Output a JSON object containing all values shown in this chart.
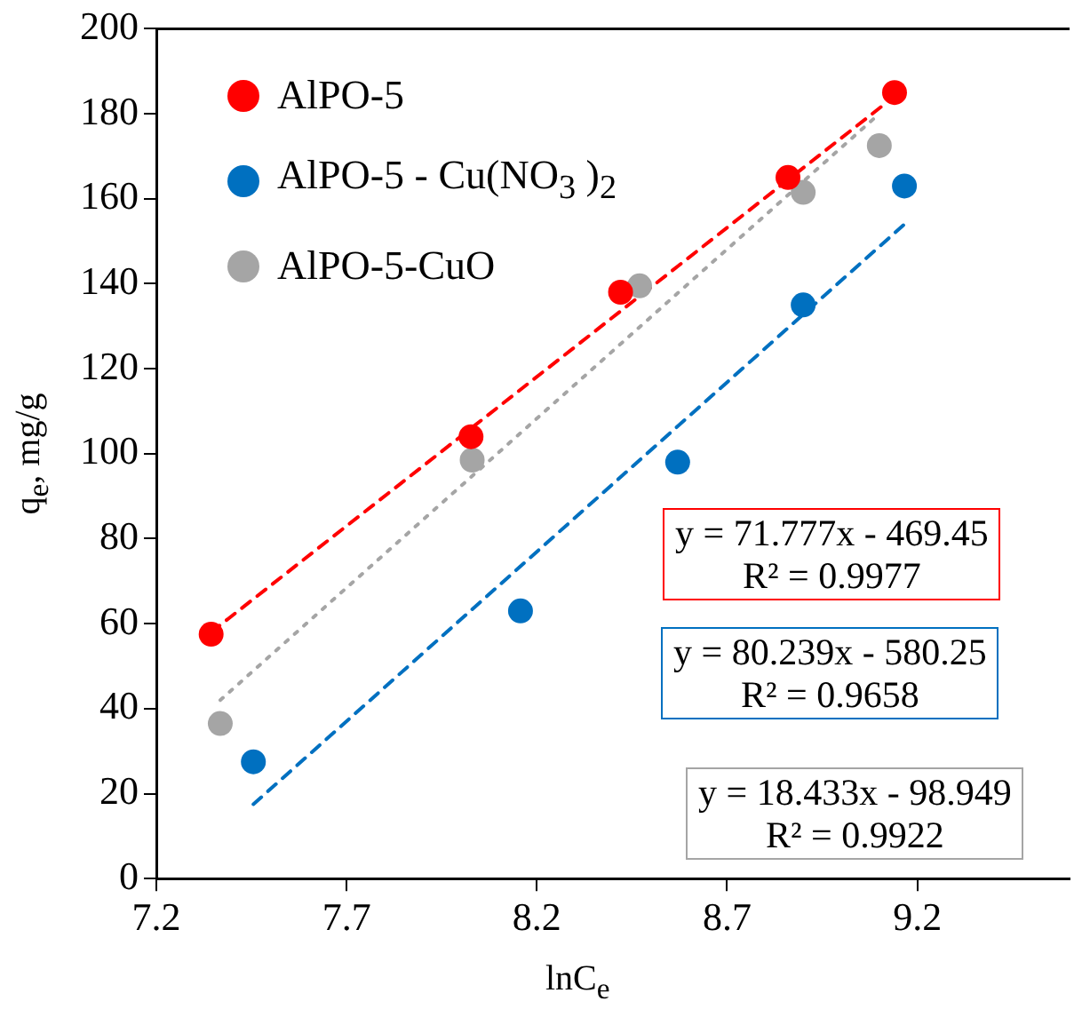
{
  "chart_data": {
    "type": "scatter",
    "xlabel": "lnC$_{e}$",
    "ylabel": "q$_{e}$, mg/g",
    "xlim": [
      7.2,
      9.6
    ],
    "xticks": [
      7.2,
      7.7,
      8.2,
      8.7,
      9.2
    ],
    "ylim": [
      0,
      200
    ],
    "yticks": [
      0,
      20,
      40,
      60,
      80,
      100,
      120,
      140,
      160,
      180,
      200
    ],
    "grid": false,
    "legend": "top left",
    "marker": "circle",
    "series": [
      {
        "name": "AlPO-5",
        "color": "#ff0000",
        "x": [
          7.344,
          8.027,
          8.42,
          8.86,
          9.14
        ],
        "values": [
          57.5,
          104,
          138,
          165,
          185
        ]
      },
      {
        "name": "AlPO-5 - Cu(NO$_{3}$ )$_{2}$",
        "color": "#0070c0",
        "x": [
          7.455,
          8.157,
          8.57,
          8.9,
          9.166
        ],
        "values": [
          27.5,
          63,
          98,
          135,
          163
        ]
      },
      {
        "name": "AlPO-5-CuO",
        "color": "#a5a5a5",
        "x": [
          7.368,
          8.03,
          8.47,
          8.9,
          9.1
        ],
        "values": [
          36.5,
          98.5,
          139.5,
          161.5,
          172.5
        ]
      },
      {
        "type": "line",
        "color": "#ff0000",
        "line_style": "dashed",
        "marker": "none",
        "x": [
          7.344,
          9.11
        ],
        "values": [
          58,
          182
        ]
      },
      {
        "type": "line",
        "color": "#0070c0",
        "line_style": "dashed",
        "marker": "none",
        "x": [
          7.455,
          9.166
        ],
        "values": [
          17.5,
          154
        ]
      },
      {
        "type": "line",
        "color": "#a5a5a5",
        "line_style": "dotted",
        "marker": "none",
        "x": [
          7.368,
          9.1
        ],
        "values": [
          42,
          180
        ]
      }
    ],
    "annotations": [
      "y = 71.777x - 469.45\nR² = 0.9977",
      "y = 80.239x - 580.25\nR² = 0.9658",
      "y = 18.433x - 98.949\nR² = 0.9922"
    ]
  }
}
